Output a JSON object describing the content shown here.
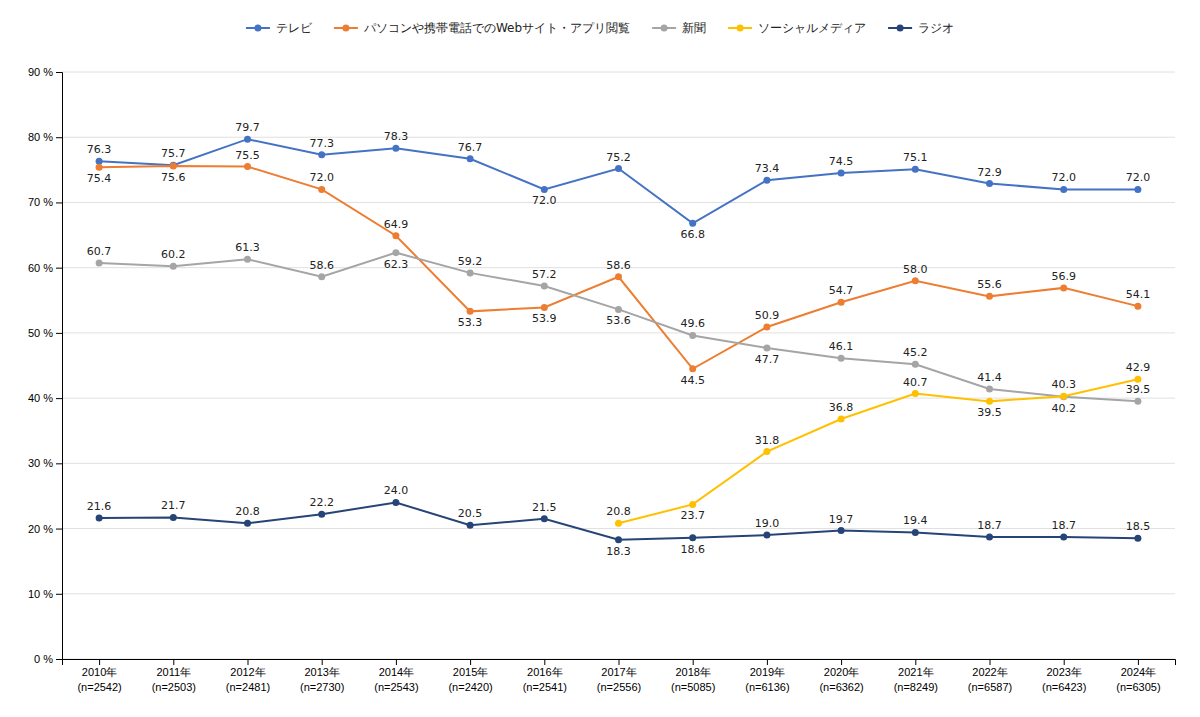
{
  "chart_data": {
    "type": "line",
    "categories": [
      "2010年\n(n=2542)",
      "2011年\n(n=2503)",
      "2012年\n(n=2481)",
      "2013年\n(n=2730)",
      "2014年\n(n=2543)",
      "2015年\n(n=2420)",
      "2016年\n(n=2541)",
      "2017年\n(n=2556)",
      "2018年\n(n=5085)",
      "2019年\n(n=6136)",
      "2020年\n(n=6362)",
      "2021年\n(n=8249)",
      "2022年\n(n=6587)",
      "2023年\n(n=6423)",
      "2024年\n(n=6305)"
    ],
    "series": [
      {
        "name": "テレビ",
        "color": "#4472C4",
        "values": [
          76.3,
          75.7,
          79.7,
          77.3,
          78.3,
          76.7,
          72.0,
          75.2,
          66.8,
          73.4,
          74.5,
          75.1,
          72.9,
          72.0,
          72.0
        ],
        "value_labels": [
          "76.3",
          "75.7",
          "79.7",
          "77.3",
          "78.3",
          "76.7",
          "72.0",
          "75.2",
          "66.8",
          "73.4",
          "74.5",
          "75.1",
          "72.9",
          "72.0",
          "72.0"
        ]
      },
      {
        "name": "パソコンや携帯電話でのWebサイト・アプリ閲覧",
        "color": "#ED7D31",
        "values": [
          75.4,
          75.6,
          75.5,
          72.0,
          64.9,
          53.3,
          53.9,
          58.6,
          44.5,
          50.9,
          54.7,
          58.0,
          55.6,
          56.9,
          54.1
        ],
        "value_labels": [
          "75.4",
          "75.6",
          "75.5",
          "72.0",
          "64.9",
          "53.3",
          "53.9",
          "58.6",
          "44.5",
          "50.9",
          "54.7",
          "58.0",
          "55.6",
          "56.9",
          "54.1"
        ]
      },
      {
        "name": "新聞",
        "color": "#A5A5A5",
        "values": [
          60.7,
          60.2,
          61.3,
          58.6,
          62.3,
          59.2,
          57.2,
          53.6,
          49.6,
          47.7,
          46.1,
          45.2,
          41.4,
          40.2,
          39.5
        ],
        "value_labels": [
          "60.7",
          "60.2",
          "61.3",
          "58.6",
          "62.3",
          "59.2",
          "57.2",
          "53.6",
          "49.6",
          "47.7",
          "46.1",
          "45.2",
          "41.4",
          "40.2",
          "39.5"
        ]
      },
      {
        "name": "ソーシャルメディア",
        "color": "#FFC000",
        "values": [
          null,
          null,
          null,
          null,
          null,
          null,
          null,
          20.8,
          23.7,
          31.8,
          36.8,
          40.7,
          39.5,
          40.3,
          42.9
        ],
        "value_labels": [
          null,
          null,
          null,
          null,
          null,
          null,
          null,
          "20.8",
          "23.7",
          "31.8",
          "36.8",
          "40.7",
          "39.5",
          "40.3",
          "42.9"
        ]
      },
      {
        "name": "ラジオ",
        "color": "#264478",
        "values": [
          21.6,
          21.7,
          20.8,
          22.2,
          24.0,
          20.5,
          21.5,
          18.3,
          18.6,
          19.0,
          19.7,
          19.4,
          18.7,
          18.7,
          18.5
        ],
        "value_labels": [
          "21.6",
          "21.7",
          "20.8",
          "22.2",
          "24.0",
          "20.5",
          "21.5",
          "18.3",
          "18.6",
          "19.0",
          "19.7",
          "19.4",
          "18.7",
          "18.7",
          "18.5"
        ]
      }
    ],
    "ylim": [
      0,
      90
    ],
    "yticks": [
      {
        "value": 0,
        "label": "0 %"
      },
      {
        "value": 10,
        "label": "10 %"
      },
      {
        "value": 20,
        "label": "20 %"
      },
      {
        "value": 30,
        "label": "30 %"
      },
      {
        "value": 40,
        "label": "40 %"
      },
      {
        "value": 50,
        "label": "50 %"
      },
      {
        "value": 60,
        "label": "60 %"
      },
      {
        "value": 70,
        "label": "70 %"
      },
      {
        "value": 80,
        "label": "80 %"
      },
      {
        "value": 90,
        "label": "90 %"
      }
    ],
    "grid": true,
    "legend": "top",
    "marker": "circle",
    "line_style": "solid",
    "data_labels": true
  }
}
